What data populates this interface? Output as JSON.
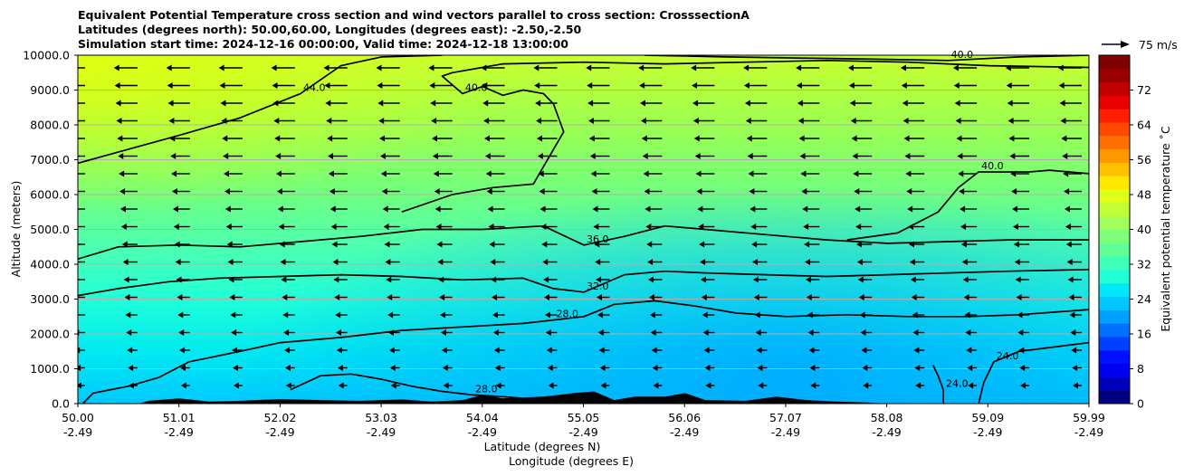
{
  "title_lines": [
    "Equivalent Potential Temperature cross section and wind vectors parallel to cross section: CrosssectionA",
    "Latitudes (degrees north): 50.00,60.00, Longitudes (degrees east): -2.50,-2.50",
    "Simulation start time: 2024-12-16 00:00:00, Valid time: 2024-12-18 13:00:00"
  ],
  "chart_data": {
    "type": "heatmap",
    "ylabel": "Altitude (meters)",
    "xlabel_line1": "Latitude (degrees N)",
    "xlabel_line2": "Longitude (degrees E)",
    "ylim": [
      0,
      10000
    ],
    "xlim": [
      50.0,
      59.99
    ],
    "y_ticks": [
      "0.0",
      "1000.0",
      "2000.0",
      "3000.0",
      "4000.0",
      "5000.0",
      "6000.0",
      "7000.0",
      "8000.0",
      "9000.0",
      "10000.0"
    ],
    "x_ticks": [
      {
        "lat": "50.00",
        "lon": "-2.49"
      },
      {
        "lat": "51.01",
        "lon": "-2.49"
      },
      {
        "lat": "52.02",
        "lon": "-2.49"
      },
      {
        "lat": "53.03",
        "lon": "-2.49"
      },
      {
        "lat": "54.04",
        "lon": "-2.49"
      },
      {
        "lat": "55.05",
        "lon": "-2.49"
      },
      {
        "lat": "56.06",
        "lon": "-2.49"
      },
      {
        "lat": "57.07",
        "lon": "-2.49"
      },
      {
        "lat": "58.08",
        "lon": "-2.49"
      },
      {
        "lat": "59.09",
        "lon": "-2.49"
      },
      {
        "lat": "59.99",
        "lon": "-2.49"
      }
    ],
    "horizontal_grid": true,
    "colorbar": {
      "label": "Equivalent potential temperature ˚C",
      "range": [
        0,
        80
      ],
      "ticks": [
        "0",
        "8",
        "16",
        "24",
        "32",
        "40",
        "48",
        "56",
        "64",
        "72"
      ]
    },
    "quiver_key": "75 m/s",
    "contours": [
      {
        "label": "24.0",
        "points": [
          [
            58.45,
            1100
          ],
          [
            58.5,
            800
          ],
          [
            58.55,
            400
          ],
          [
            58.55,
            0
          ]
        ]
      },
      {
        "label": "24.0",
        "points": [
          [
            58.9,
            0
          ],
          [
            58.95,
            600
          ],
          [
            59.05,
            1200
          ],
          [
            59.3,
            1500
          ],
          [
            59.99,
            1750
          ]
        ]
      },
      {
        "label": "28.0",
        "points": [
          [
            50.05,
            0
          ],
          [
            50.15,
            300
          ],
          [
            50.5,
            500
          ],
          [
            50.8,
            750
          ],
          [
            51.1,
            1200
          ],
          [
            51.6,
            1500
          ],
          [
            52.0,
            1750
          ],
          [
            52.6,
            1900
          ],
          [
            53.2,
            2100
          ],
          [
            53.8,
            2200
          ],
          [
            54.4,
            2300
          ],
          [
            54.7,
            2400
          ],
          [
            55.0,
            2500
          ],
          [
            55.3,
            2850
          ],
          [
            55.7,
            2950
          ],
          [
            56.1,
            2800
          ],
          [
            56.5,
            2600
          ],
          [
            57.0,
            2500
          ],
          [
            57.6,
            2550
          ],
          [
            58.2,
            2500
          ],
          [
            58.8,
            2500
          ],
          [
            59.3,
            2550
          ],
          [
            59.99,
            2700
          ]
        ]
      },
      {
        "label": "28.0",
        "points": [
          [
            52.1,
            400
          ],
          [
            52.4,
            800
          ],
          [
            52.7,
            850
          ],
          [
            53.0,
            700
          ],
          [
            53.3,
            500
          ],
          [
            53.6,
            350
          ],
          [
            53.9,
            250
          ],
          [
            54.2,
            200
          ],
          [
            54.4,
            150
          ],
          [
            54.6,
            100
          ],
          [
            54.8,
            50
          ],
          [
            55.0,
            0
          ]
        ]
      },
      {
        "label": "32.0",
        "points": [
          [
            50.0,
            3100
          ],
          [
            50.4,
            3300
          ],
          [
            50.9,
            3500
          ],
          [
            51.4,
            3600
          ],
          [
            52.0,
            3650
          ],
          [
            52.6,
            3700
          ],
          [
            53.2,
            3650
          ],
          [
            53.8,
            3550
          ],
          [
            54.4,
            3600
          ],
          [
            54.7,
            3300
          ],
          [
            55.0,
            3200
          ],
          [
            55.4,
            3700
          ],
          [
            55.8,
            3800
          ],
          [
            56.2,
            3750
          ],
          [
            56.8,
            3700
          ],
          [
            57.4,
            3650
          ],
          [
            58.0,
            3700
          ],
          [
            58.6,
            3750
          ],
          [
            59.2,
            3800
          ],
          [
            59.99,
            3850
          ]
        ]
      },
      {
        "label": "36.0",
        "points": [
          [
            50.0,
            4150
          ],
          [
            50.4,
            4500
          ],
          [
            51.0,
            4550
          ],
          [
            51.6,
            4500
          ],
          [
            52.2,
            4650
          ],
          [
            52.8,
            4800
          ],
          [
            53.4,
            5000
          ],
          [
            54.0,
            5000
          ],
          [
            54.6,
            5100
          ],
          [
            55.0,
            4550
          ],
          [
            55.4,
            4800
          ],
          [
            55.8,
            5100
          ],
          [
            56.2,
            5000
          ],
          [
            56.8,
            4850
          ],
          [
            57.4,
            4700
          ],
          [
            58.0,
            4600
          ],
          [
            58.6,
            4650
          ],
          [
            59.2,
            4700
          ],
          [
            59.99,
            4700
          ]
        ]
      },
      {
        "label": "40.0",
        "points": [
          [
            53.2,
            5500
          ],
          [
            53.7,
            6000
          ],
          [
            54.1,
            6200
          ],
          [
            54.5,
            6300
          ],
          [
            54.8,
            7800
          ],
          [
            54.7,
            8600
          ],
          [
            54.6,
            8900
          ],
          [
            54.4,
            9000
          ],
          [
            54.2,
            8850
          ],
          [
            54.0,
            9100
          ],
          [
            53.8,
            8900
          ],
          [
            53.6,
            9400
          ],
          [
            53.7,
            9500
          ],
          [
            54.2,
            9750
          ],
          [
            55.0,
            9800
          ],
          [
            55.8,
            9750
          ],
          [
            56.6,
            9800
          ],
          [
            57.4,
            9850
          ],
          [
            58.2,
            9800
          ],
          [
            59.0,
            9700
          ],
          [
            59.99,
            9650
          ]
        ]
      },
      {
        "label": "40.0",
        "points": [
          [
            57.6,
            4700
          ],
          [
            58.1,
            4900
          ],
          [
            58.5,
            5500
          ],
          [
            58.7,
            6200
          ],
          [
            58.9,
            6650
          ],
          [
            59.4,
            6650
          ],
          [
            59.6,
            6700
          ],
          [
            59.99,
            6600
          ]
        ]
      },
      {
        "label": "44.0",
        "points": [
          [
            50.0,
            6900
          ],
          [
            50.5,
            7300
          ],
          [
            51.0,
            7700
          ],
          [
            51.6,
            8200
          ],
          [
            52.2,
            8900
          ],
          [
            52.6,
            9700
          ],
          [
            53.0,
            9950
          ],
          [
            53.6,
            10000
          ]
        ]
      },
      {
        "label": "40.0",
        "points": [
          [
            55.6,
            10000
          ],
          [
            56.4,
            9950
          ],
          [
            57.6,
            9900
          ],
          [
            58.6,
            9850
          ],
          [
            59.3,
            9950
          ],
          [
            59.99,
            10000
          ]
        ]
      }
    ],
    "terrain_heights": [
      [
        50.0,
        0
      ],
      [
        50.6,
        0
      ],
      [
        50.7,
        80
      ],
      [
        51.0,
        150
      ],
      [
        51.3,
        60
      ],
      [
        51.6,
        80
      ],
      [
        52.0,
        130
      ],
      [
        52.4,
        100
      ],
      [
        52.8,
        80
      ],
      [
        53.2,
        120
      ],
      [
        53.5,
        60
      ],
      [
        53.8,
        100
      ],
      [
        54.0,
        250
      ],
      [
        54.2,
        150
      ],
      [
        54.4,
        180
      ],
      [
        54.6,
        200
      ],
      [
        54.9,
        300
      ],
      [
        55.1,
        350
      ],
      [
        55.3,
        100
      ],
      [
        55.5,
        200
      ],
      [
        55.8,
        200
      ],
      [
        56.0,
        300
      ],
      [
        56.2,
        100
      ],
      [
        56.6,
        80
      ],
      [
        56.9,
        200
      ],
      [
        57.2,
        100
      ],
      [
        57.5,
        60
      ],
      [
        57.8,
        30
      ],
      [
        58.0,
        0
      ],
      [
        59.99,
        0
      ]
    ]
  }
}
